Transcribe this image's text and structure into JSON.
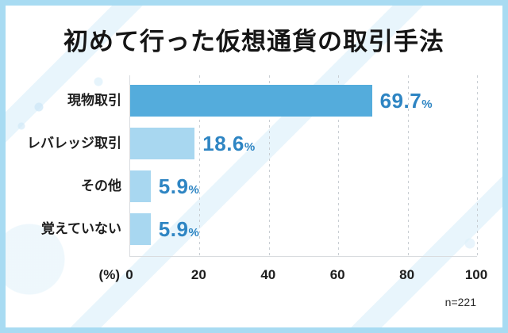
{
  "title": "初めて行った仮想通貨の取引手法",
  "axis_unit_label": "(%)",
  "sample_note": "n=221",
  "colors": {
    "frame_border": "#a8dbf2",
    "primary_bar": "#54acdc",
    "secondary_bar": "#a8d7f0",
    "value_text": "#2e85c3",
    "label_text": "#1d1d1d",
    "gridline": "#c9ced3"
  },
  "chart_data": {
    "type": "bar",
    "orientation": "horizontal",
    "title": "初めて行った仮想通貨の取引手法",
    "categories": [
      "現物取引",
      "レバレッジ取引",
      "その他",
      "覚えていない"
    ],
    "values": [
      69.7,
      18.6,
      5.9,
      5.9
    ],
    "value_labels": [
      "69.7",
      "18.6",
      "5.9",
      "5.9"
    ],
    "value_suffix": "%",
    "bar_colors": [
      "#54acdc",
      "#a8d7f0",
      "#a8d7f0",
      "#a8d7f0"
    ],
    "xlabel": "(%)",
    "xlim": [
      0,
      100
    ],
    "xticks": [
      0,
      20,
      40,
      60,
      80,
      100
    ],
    "grid": "vertical-dashed",
    "legend": "none",
    "sample_note": "n=221"
  }
}
